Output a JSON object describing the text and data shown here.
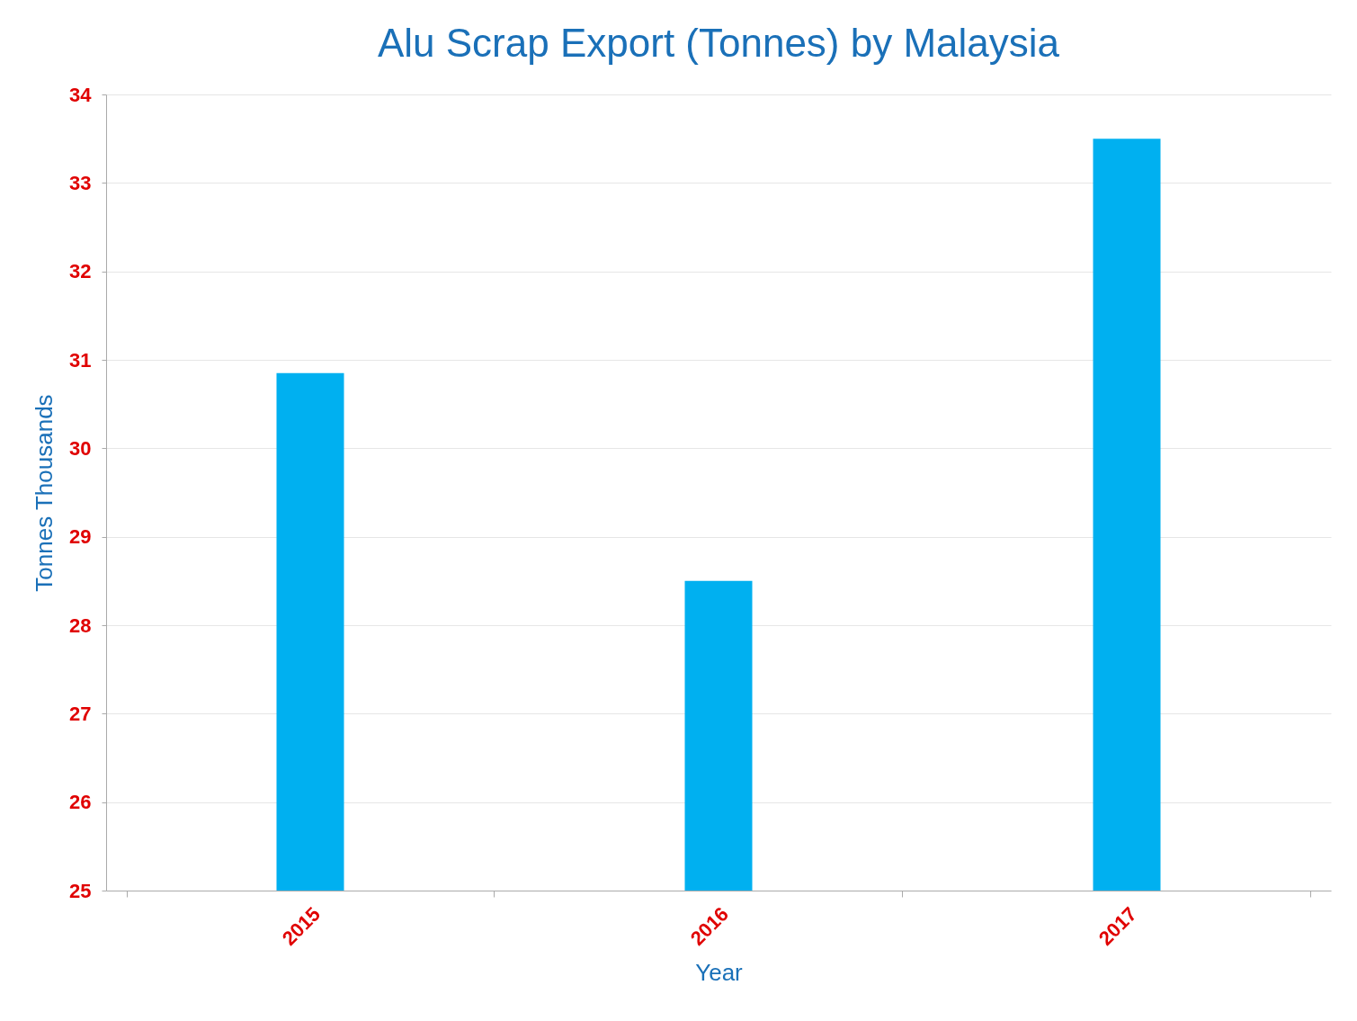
{
  "chart_data": {
    "type": "bar",
    "title": "Alu Scrap Export (Tonnes) by Malaysia",
    "xlabel": "Year",
    "ylabel": "Tonnes Thousands",
    "categories": [
      "2015",
      "2016",
      "2017"
    ],
    "values": [
      30.85,
      28.5,
      33.5
    ],
    "color": "#00b0f0",
    "ylim": [
      25,
      34
    ],
    "yticks": [
      25,
      26,
      27,
      28,
      29,
      30,
      31,
      32,
      33,
      34
    ],
    "grid": "y"
  }
}
